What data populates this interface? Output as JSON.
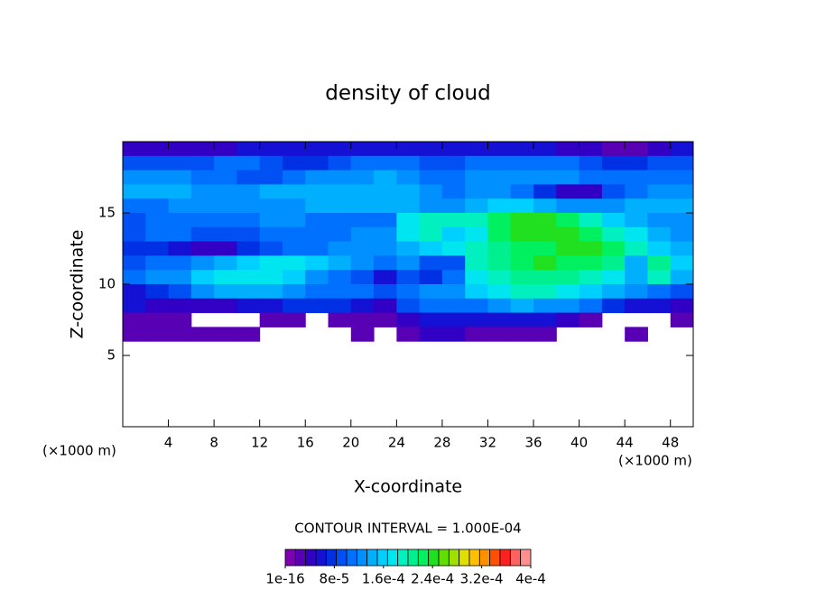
{
  "chart_data": {
    "type": "contour",
    "title": "density of cloud",
    "x_label": "X-coordinate",
    "y_label": "Z-coordinate",
    "x_unit_label": "(×1000 m)",
    "y_unit_label": "(×1000 m)",
    "xlim": [
      0,
      50
    ],
    "ylim": [
      0,
      20
    ],
    "xticks": [
      4,
      8,
      12,
      16,
      20,
      24,
      28,
      32,
      36,
      40,
      44,
      48
    ],
    "yticks": [
      5,
      10,
      15
    ],
    "contour_interval_label": "CONTOUR INTERVAL = 1.000E-04",
    "clim": [
      0,
      0.0004
    ],
    "colorbar_ticks": [
      1e-16,
      {
        "value": 8e-05,
        "label": "8e-5"
      },
      {
        "value": 0.00016,
        "label": "1.6e-4"
      },
      {
        "value": 0.00024,
        "label": "2.4e-4"
      },
      {
        "value": 0.00032,
        "label": "3.2e-4"
      },
      {
        "value": 0.0004,
        "label": "4e-4"
      }
    ],
    "colors": [
      "#7e00b0",
      "#5800b4",
      "#3200c4",
      "#1410d4",
      "#0030e4",
      "#0050f4",
      "#0070ff",
      "#0090ff",
      "#00b0ff",
      "#00d0ff",
      "#00e6f0",
      "#00f0c0",
      "#00f090",
      "#00f060",
      "#20e020",
      "#60e000",
      "#a0e000",
      "#e0e000",
      "#ffc000",
      "#ff9000",
      "#ff5000",
      "#ff2020",
      "#ff6060",
      "#ff9090"
    ],
    "x": [
      1,
      3,
      5,
      7,
      9,
      11,
      13,
      15,
      17,
      19,
      21,
      23,
      25,
      27,
      29,
      31,
      33,
      35,
      37,
      39,
      41,
      43,
      45,
      47,
      49
    ],
    "y": [
      19.5,
      18.5,
      17.5,
      16.5,
      15.5,
      14.5,
      13.5,
      12.5,
      11.5,
      10.5,
      9.5,
      8.5,
      7.5,
      6.5
    ],
    "z": [
      [
        4e-05,
        4e-05,
        4e-05,
        4e-05,
        4e-05,
        6e-05,
        6e-05,
        6e-05,
        6e-05,
        6e-05,
        6e-05,
        6e-05,
        6e-05,
        6e-05,
        6e-05,
        6e-05,
        6e-05,
        6e-05,
        6e-05,
        4e-05,
        4e-05,
        2.5e-05,
        2.5e-05,
        4e-05,
        6e-05
      ],
      [
        9e-05,
        9e-05,
        9e-05,
        9e-05,
        0.00011,
        0.00011,
        9e-05,
        8e-05,
        8e-05,
        9e-05,
        0.00011,
        0.00011,
        0.00011,
        9e-05,
        9e-05,
        0.00011,
        0.00011,
        0.00011,
        0.00011,
        0.00011,
        9e-05,
        8e-05,
        8e-05,
        9e-05,
        9e-05
      ],
      [
        0.00012,
        0.00012,
        0.00012,
        0.00011,
        0.00011,
        9e-05,
        9e-05,
        0.00011,
        0.00012,
        0.00012,
        0.00012,
        0.00014,
        0.00012,
        0.00011,
        0.00011,
        0.00012,
        0.00012,
        0.00012,
        0.00012,
        0.00012,
        0.00011,
        0.00011,
        0.00011,
        0.00011,
        0.00011
      ],
      [
        0.00014,
        0.00014,
        0.00014,
        0.00012,
        0.00012,
        0.00012,
        0.00014,
        0.00014,
        0.00014,
        0.00014,
        0.00014,
        0.00014,
        0.00014,
        0.00012,
        0.00011,
        0.00012,
        0.00012,
        0.00011,
        8e-05,
        4e-05,
        4e-05,
        9e-05,
        0.00011,
        0.00012,
        0.00012
      ],
      [
        0.00011,
        0.00011,
        0.00012,
        0.00012,
        0.00012,
        0.00012,
        0.00012,
        0.00012,
        0.00014,
        0.00014,
        0.00014,
        0.00014,
        0.00014,
        0.00012,
        0.00012,
        0.00014,
        0.00016,
        0.00016,
        0.00014,
        0.00012,
        0.00012,
        0.00012,
        0.00014,
        0.00014,
        0.00014
      ],
      [
        9e-05,
        0.00011,
        0.00011,
        0.00011,
        0.00011,
        0.00011,
        0.00012,
        0.00012,
        0.00011,
        0.00011,
        0.00011,
        0.00011,
        0.00017,
        0.00019,
        0.00019,
        0.00019,
        0.00022,
        0.00024,
        0.00024,
        0.00022,
        0.00019,
        0.00016,
        0.00014,
        0.00012,
        0.00012
      ],
      [
        9e-05,
        0.00011,
        0.00011,
        9e-05,
        9e-05,
        9e-05,
        0.00011,
        0.00011,
        0.00011,
        0.00011,
        0.00012,
        0.00012,
        0.00017,
        0.00019,
        0.00016,
        0.00017,
        0.00022,
        0.00024,
        0.00024,
        0.00024,
        0.00022,
        0.00019,
        0.00017,
        0.00014,
        0.00012
      ],
      [
        8e-05,
        8e-05,
        6e-05,
        4e-05,
        4e-05,
        8e-05,
        9e-05,
        0.00011,
        0.00011,
        0.00012,
        0.00012,
        0.00012,
        0.00014,
        0.00016,
        0.00017,
        0.00019,
        0.00021,
        0.00022,
        0.00022,
        0.00024,
        0.00024,
        0.00022,
        0.00019,
        0.00016,
        0.00014
      ],
      [
        9e-05,
        0.00011,
        0.00011,
        0.00012,
        0.00014,
        0.00016,
        0.00017,
        0.00017,
        0.00016,
        0.00014,
        0.00012,
        0.00011,
        0.00012,
        9e-05,
        9e-05,
        0.00019,
        0.00021,
        0.00022,
        0.00024,
        0.00022,
        0.00022,
        0.00021,
        0.00014,
        0.00021,
        0.00016
      ],
      [
        0.00011,
        0.00012,
        0.00012,
        0.00016,
        0.00017,
        0.00017,
        0.00017,
        0.00016,
        0.00012,
        0.00011,
        9e-05,
        6e-05,
        9e-05,
        8e-05,
        0.00011,
        0.00017,
        0.00019,
        0.00021,
        0.00021,
        0.00021,
        0.00019,
        0.00017,
        0.00014,
        0.00019,
        0.00014
      ],
      [
        6e-05,
        8e-05,
        9e-05,
        0.00012,
        0.00014,
        0.00014,
        0.00014,
        0.00012,
        0.00011,
        0.00011,
        0.00011,
        9e-05,
        0.00011,
        0.00012,
        0.00012,
        0.00016,
        0.00017,
        0.00019,
        0.00019,
        0.00017,
        0.00016,
        0.00014,
        0.00012,
        0.00011,
        9e-05
      ],
      [
        6e-05,
        4e-05,
        4e-05,
        4e-05,
        4e-05,
        6e-05,
        6e-05,
        8e-05,
        8e-05,
        8e-05,
        6e-05,
        4e-05,
        9e-05,
        0.00011,
        0.00011,
        0.00011,
        0.00012,
        0.00014,
        0.00012,
        0.00012,
        0.00011,
        8e-05,
        6e-05,
        6e-05,
        4e-05
      ],
      [
        2.5e-05,
        2.5e-05,
        2.5e-05,
        null,
        null,
        null,
        2.5e-05,
        2.5e-05,
        null,
        2.5e-05,
        2.5e-05,
        2.5e-05,
        4e-05,
        6e-05,
        6e-05,
        6e-05,
        6e-05,
        6e-05,
        6e-05,
        4e-05,
        2.5e-05,
        null,
        null,
        null,
        2.5e-05
      ],
      [
        2.5e-05,
        2.5e-05,
        2.5e-05,
        2.5e-05,
        2.5e-05,
        2.5e-05,
        null,
        null,
        null,
        null,
        2.5e-05,
        null,
        2.5e-05,
        4e-05,
        4e-05,
        2.5e-05,
        2.5e-05,
        2.5e-05,
        2.5e-05,
        null,
        null,
        null,
        2.5e-05,
        null,
        null
      ]
    ]
  }
}
